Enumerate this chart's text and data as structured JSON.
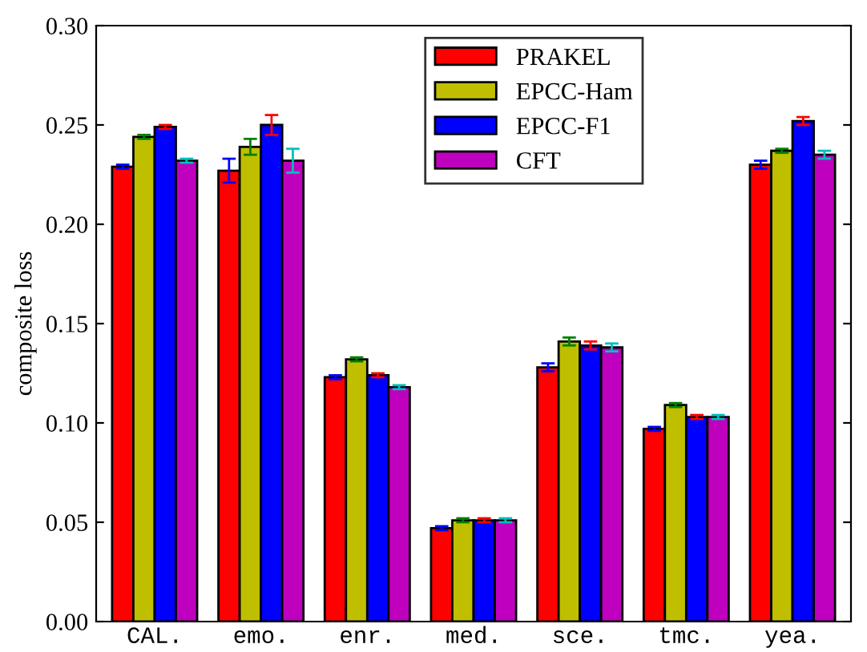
{
  "chart_data": {
    "type": "bar",
    "ylabel": "composite loss",
    "categories": [
      "CAL.",
      "emo.",
      "enr.",
      "med.",
      "sce.",
      "tmc.",
      "yea."
    ],
    "series": [
      {
        "name": "PRAKEL",
        "color": "#ff0000",
        "values": [
          0.229,
          0.227,
          0.123,
          0.047,
          0.128,
          0.097,
          0.23
        ],
        "errors": [
          0.001,
          0.006,
          0.001,
          0.001,
          0.002,
          0.001,
          0.002
        ]
      },
      {
        "name": "EPCC-Ham",
        "color": "#bfbf00",
        "values": [
          0.244,
          0.239,
          0.132,
          0.051,
          0.141,
          0.109,
          0.237
        ],
        "errors": [
          0.001,
          0.004,
          0.001,
          0.001,
          0.002,
          0.001,
          0.001
        ]
      },
      {
        "name": "EPCC-F1",
        "color": "#0000ff",
        "values": [
          0.249,
          0.25,
          0.124,
          0.051,
          0.139,
          0.103,
          0.252
        ],
        "errors": [
          0.001,
          0.005,
          0.001,
          0.001,
          0.002,
          0.001,
          0.002
        ]
      },
      {
        "name": "CFT",
        "color": "#bf00bf",
        "values": [
          0.232,
          0.232,
          0.118,
          0.051,
          0.138,
          0.103,
          0.235
        ],
        "errors": [
          0.001,
          0.006,
          0.001,
          0.001,
          0.002,
          0.001,
          0.002
        ]
      }
    ],
    "ylim": [
      0,
      0.3
    ],
    "yticks": [
      {
        "value": 0,
        "label": "0.00"
      },
      {
        "value": 0.05,
        "label": "0.05"
      },
      {
        "value": 0.1,
        "label": "0.10"
      },
      {
        "value": 0.15,
        "label": "0.15"
      },
      {
        "value": 0.2,
        "label": "0.20"
      },
      {
        "value": 0.25,
        "label": "0.25"
      },
      {
        "value": 0.3,
        "label": "0.30"
      }
    ],
    "legend": "top center",
    "grid": false
  }
}
